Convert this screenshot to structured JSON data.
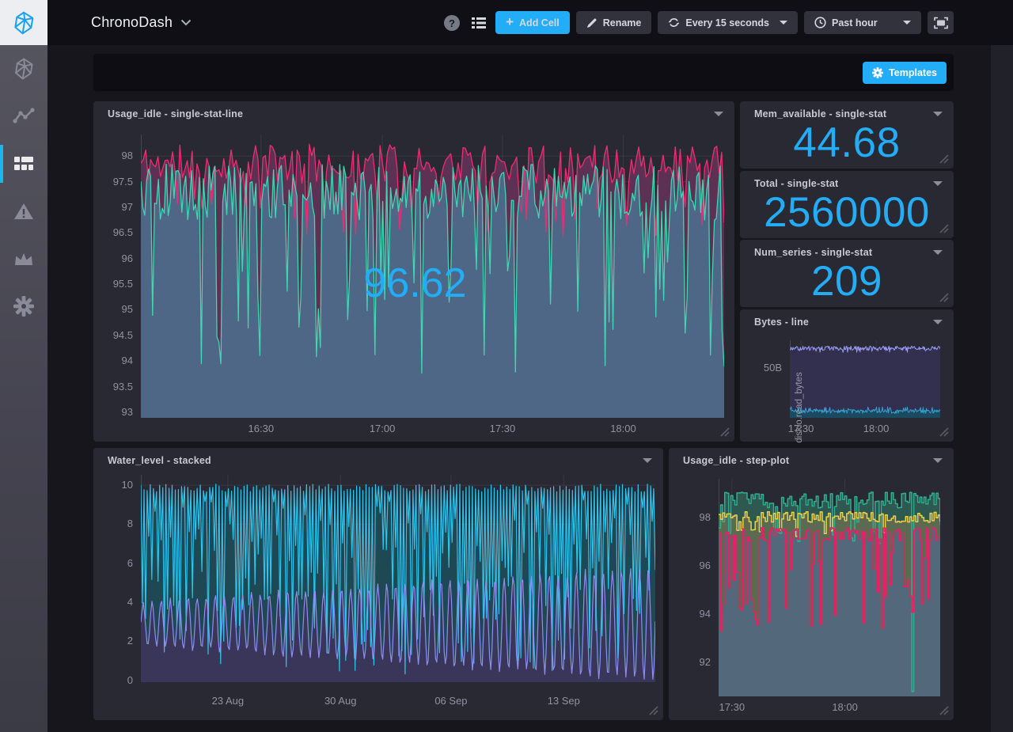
{
  "navbar": {
    "title": "ChronoDash",
    "add_cell_label": "Add Cell",
    "rename_label": "Rename",
    "autorefresh_label": "Every 15 seconds",
    "timerange_label": "Past hour"
  },
  "sidebar": {
    "items": [
      "cubo-logo",
      "data-explorer",
      "dashboards",
      "alerts",
      "admin",
      "settings"
    ],
    "active_item": "dashboards"
  },
  "template_bar": {
    "templates_label": "Templates"
  },
  "colors": {
    "accent_blue": "#22ADF6",
    "sidebar_active_bar": "#19b7ee",
    "cell_bg": "#292934",
    "page_bg": "#16161c",
    "navbar_bg": "#0f0f15"
  },
  "cells": [
    {
      "title": "Usage_idle - single-stat-line",
      "overlay_value": "96.62"
    },
    {
      "title": "Mem_available - single-stat",
      "value": "44.68"
    },
    {
      "title": "Total - single-stat",
      "value": "2560000"
    },
    {
      "title": "Num_series - single-stat",
      "value": "209"
    },
    {
      "title": "Bytes - line"
    },
    {
      "title": "Water_level - stacked"
    },
    {
      "title": "Usage_idle - step-plot"
    }
  ],
  "chart_data": [
    {
      "id": "usage_idle_line",
      "type": "line",
      "title": "Usage_idle - single-stat-line",
      "overlay_value": "96.62",
      "y_domain": [
        92.89,
        98.42
      ],
      "xlabel_gap": 6,
      "y_ticks": [
        {
          "label": "98",
          "v": 98
        },
        {
          "label": "97.5",
          "v": 97.5
        },
        {
          "label": "97",
          "v": 97
        },
        {
          "label": "96.5",
          "v": 96.5
        },
        {
          "label": "96",
          "v": 96
        },
        {
          "label": "95.5",
          "v": 95.5
        },
        {
          "label": "95",
          "v": 95
        },
        {
          "label": "94.5",
          "v": 94.5
        },
        {
          "label": "94",
          "v": 94
        },
        {
          "label": "93.5",
          "v": 93.5
        },
        {
          "label": "93",
          "v": 93
        }
      ],
      "x_ticks": [
        {
          "label": "16:30",
          "pos": 0.206
        },
        {
          "label": "17:00",
          "pos": 0.414
        },
        {
          "label": "17:30",
          "pos": 0.62
        },
        {
          "label": "18:00",
          "pos": 0.827
        }
      ],
      "series": [
        {
          "name": "usage_idle-pink",
          "color": "#ED2D71",
          "fill": "#5c3153",
          "stroke_w": 1.3,
          "gen": {
            "kind": "noise",
            "seed": 11,
            "n": 240,
            "base": 97.85,
            "amp": 0.38,
            "dipP": 0.1,
            "dipMin": 96.4,
            "dipMax": 97.3,
            "clamp": [
              96.25,
              98.42
            ]
          }
        },
        {
          "name": "usage_idle-teal",
          "color": "#41D5B1",
          "fill": "#4e6786",
          "stroke_w": 1.3,
          "gen": {
            "kind": "noise",
            "seed": 5,
            "n": 300,
            "base": 97.3,
            "amp": 0.55,
            "dipP": 0.16,
            "dipMin": 93.75,
            "dipMax": 96.2,
            "clamp": [
              93.4,
              98.35
            ]
          }
        }
      ]
    },
    {
      "id": "bytes_line",
      "type": "line",
      "title": "Bytes - line",
      "y_axis_label": "diskio.read_bytes",
      "y_domain": [
        0,
        78
      ],
      "xlabel_gap": 6,
      "y_ticks": [
        {
          "label": "50B",
          "v": 50
        }
      ],
      "x_ticks": [
        {
          "label": "17:30",
          "pos": 0.074
        },
        {
          "label": "18:00",
          "pos": 0.574
        }
      ],
      "series": [
        {
          "name": "read_bytes-lavender",
          "color": "#9A9DF6",
          "fill": "#332f4e",
          "stroke_w": 1,
          "gen": {
            "kind": "noise",
            "seed": 9,
            "n": 230,
            "base": 70,
            "amp": 2.2,
            "dipP": 0.12,
            "dipMin": 65.5,
            "dipMax": 68,
            "clamp": [
              63,
              74
            ]
          }
        },
        {
          "name": "read_bytes-cyan",
          "color": "#34A3D1",
          "fill": "#1b4a60",
          "stroke_w": 1,
          "gen": {
            "kind": "noise",
            "seed": 4,
            "n": 230,
            "base": 6.5,
            "amp": 2,
            "dipP": 0.1,
            "dipMin": 9,
            "dipMax": 11,
            "clamp": [
              3,
              12
            ]
          }
        }
      ]
    },
    {
      "id": "water_stacked",
      "type": "area",
      "title": "Water_level - stacked",
      "y_domain": [
        -0.1,
        10.53
      ],
      "xlabel_gap": 16,
      "y_ticks": [
        {
          "label": "10",
          "v": 10
        },
        {
          "label": "8",
          "v": 8
        },
        {
          "label": "6",
          "v": 6
        },
        {
          "label": "4",
          "v": 4
        },
        {
          "label": "2",
          "v": 2
        },
        {
          "label": "0",
          "v": 0
        }
      ],
      "x_ticks": [
        {
          "label": "23 Aug",
          "pos": 0.169
        },
        {
          "label": "30 Aug",
          "pos": 0.388
        },
        {
          "label": "06 Sep",
          "pos": 0.603
        },
        {
          "label": "13 Sep",
          "pos": 0.822
        }
      ],
      "series": [
        {
          "name": "water_level-cyan",
          "color": "#2CC5EE",
          "fill": "#1d4854",
          "stroke_w": 1.2,
          "gen": {
            "kind": "comb",
            "seed": 8,
            "n": 165,
            "top": 10.05,
            "topJit": 0.4,
            "shallowP": 0.45,
            "dipMin": 0.8,
            "dipMid": 4.5,
            "dipMax": 9.8,
            "floor": 0.1
          }
        },
        {
          "name": "water_level-purple",
          "color": "#8F8CF0",
          "fill": "#393659",
          "stroke_w": 1.2,
          "gen": {
            "kind": "wave",
            "seed": 3,
            "n": 420,
            "base": 2.9,
            "amp0": 1.1,
            "amp1": 2.9,
            "cycles": 57,
            "noise": 0.3,
            "clampMin": 0.05
          }
        }
      ]
    },
    {
      "id": "step_plot",
      "type": "line",
      "title": "Usage_idle - step-plot",
      "y_domain": [
        90.6,
        99.6
      ],
      "xlabel_gap": 6,
      "y_ticks": [
        {
          "label": "98",
          "v": 98
        },
        {
          "label": "96",
          "v": 96
        },
        {
          "label": "94",
          "v": 94
        },
        {
          "label": "92",
          "v": 92
        }
      ],
      "x_ticks": [
        {
          "label": "17:30",
          "pos": 0.06
        },
        {
          "label": "18:00",
          "pos": 0.57
        }
      ],
      "series": [
        {
          "name": "usage_idle-teal",
          "color": "#2FAE91",
          "fill": "#2d5950",
          "stroke_w": 1.5,
          "gen": {
            "kind": "steps",
            "seed": 6,
            "n": 110,
            "base": 98.72,
            "amp": 0.33,
            "dipP": 0.12,
            "dipMin": 96.9,
            "dipMax": 97.9,
            "clamp": [
              96.6,
              99.45
            ],
            "spikes": [
              {
                "i": 0.87,
                "v": 90.8
              }
            ]
          }
        },
        {
          "name": "usage_idle-yellow",
          "color": "#ECD24A",
          "fill": "#5d6a52",
          "stroke_w": 1.5,
          "gen": {
            "kind": "steps",
            "seed": 2,
            "n": 110,
            "base": 98.02,
            "amp": 0.22,
            "dipP": 0.08,
            "dipMin": 97.1,
            "dipMax": 97.5,
            "clamp": [
              96.9,
              98.5
            ]
          }
        },
        {
          "name": "usage_idle-pink",
          "color": "#EE1D63",
          "fill": "#54687c",
          "stroke_w": 1.5,
          "gen": {
            "kind": "steps",
            "seed": 13,
            "n": 110,
            "base": 97.3,
            "amp": 0.28,
            "dipP": 0.25,
            "dipMin": 93.2,
            "dipMax": 96.6,
            "clamp": [
              93,
              97.95
            ]
          }
        }
      ]
    }
  ]
}
